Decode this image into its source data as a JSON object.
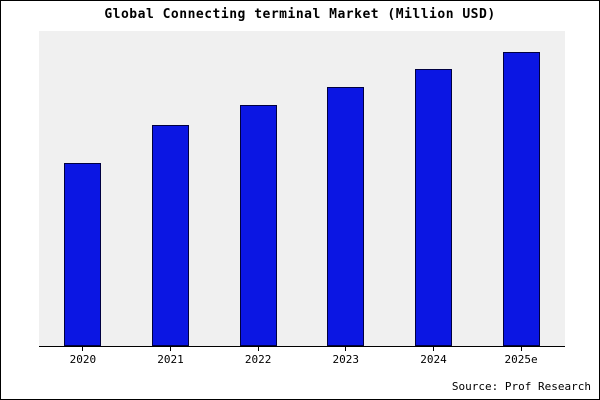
{
  "page": {
    "title": "Global Connecting terminal Market (Million USD)",
    "source": "Source: Prof Research"
  },
  "chart_data": {
    "type": "bar",
    "title": "Global Connecting terminal Market (Million USD)",
    "categories": [
      "2020",
      "2021",
      "2022",
      "2023",
      "2024",
      "2025e"
    ],
    "values": [
      62,
      75,
      82,
      88,
      94,
      100
    ],
    "xlabel": "",
    "ylabel": "",
    "ylim": [
      0,
      107
    ],
    "grid": false,
    "legend": false,
    "colors": {
      "bar_fill": "#0b16e3",
      "bar_edge": "#000040",
      "plot_bg": "#f0f0f0",
      "axis": "#000000"
    }
  }
}
